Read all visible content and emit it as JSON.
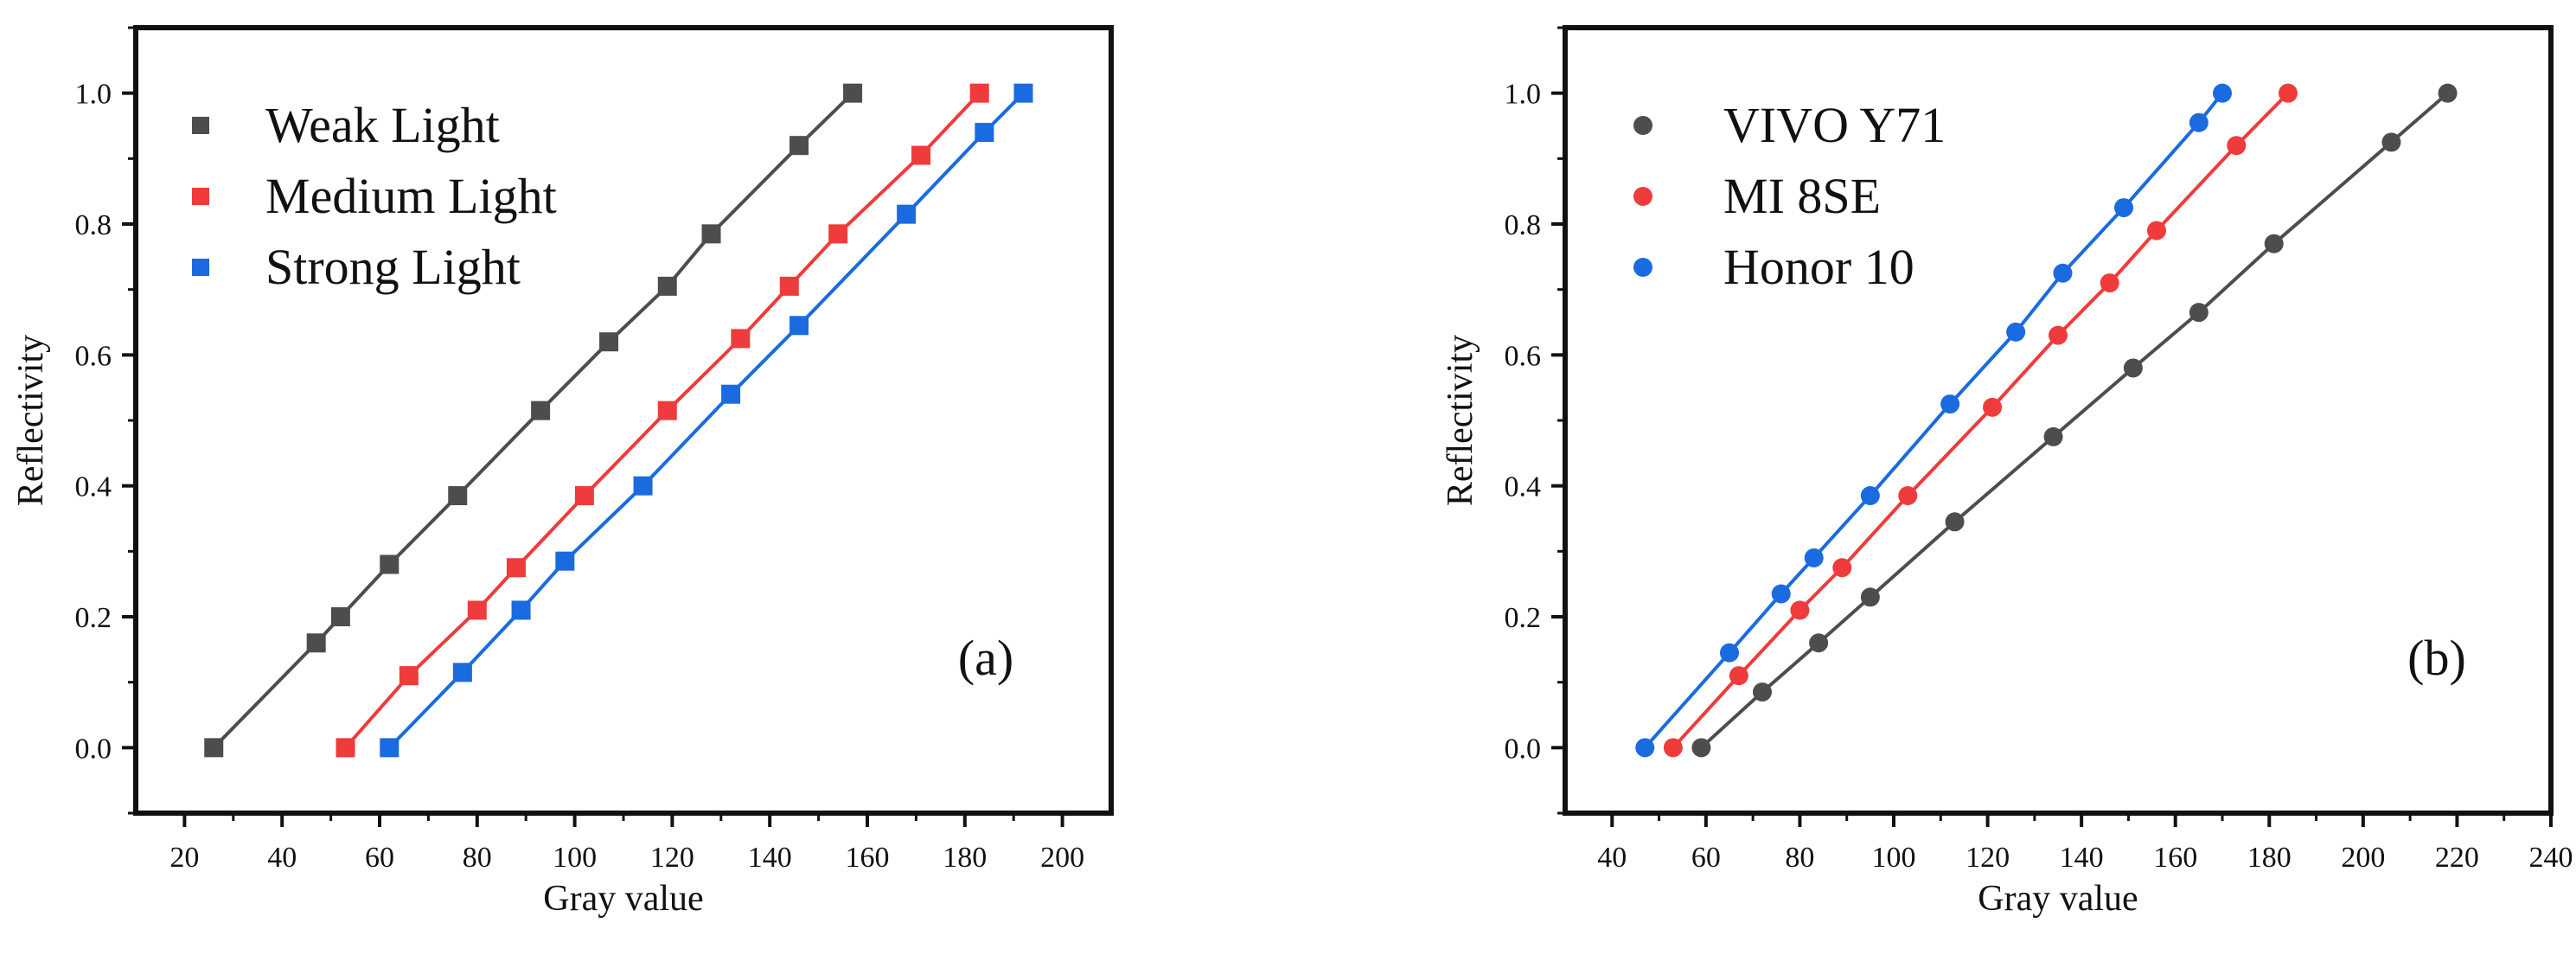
{
  "chart_data": [
    {
      "type": "line",
      "marker": "square",
      "title": "",
      "panel_label": "(a)",
      "xlabel": "Gray value",
      "ylabel": "Reflectivity",
      "xlim": [
        10,
        210
      ],
      "ylim": [
        -0.1,
        1.1
      ],
      "x_ticks": [
        20,
        40,
        60,
        80,
        100,
        120,
        140,
        160,
        180,
        200
      ],
      "y_ticks": [
        0.0,
        0.2,
        0.4,
        0.6,
        0.8,
        1.0
      ],
      "x_tick_labels": [
        "20",
        "40",
        "60",
        "80",
        "100",
        "120",
        "140",
        "160",
        "180",
        "200"
      ],
      "y_tick_labels": [
        "0.0",
        "0.2",
        "0.4",
        "0.6",
        "0.8",
        "1.0"
      ],
      "grid": false,
      "legend_position": "top-left",
      "series": [
        {
          "name": "Weak Light",
          "color": "#4d4d4d",
          "x": [
            26,
            47,
            52,
            62,
            76,
            93,
            107,
            119,
            128,
            146,
            157
          ],
          "y": [
            0.0,
            0.16,
            0.2,
            0.28,
            0.385,
            0.515,
            0.62,
            0.705,
            0.785,
            0.92,
            1.0
          ]
        },
        {
          "name": "Medium Light",
          "color": "#ef3b3b",
          "x": [
            53,
            66,
            80,
            88,
            102,
            119,
            134,
            144,
            154,
            171,
            183
          ],
          "y": [
            0.0,
            0.11,
            0.21,
            0.275,
            0.385,
            0.515,
            0.625,
            0.705,
            0.785,
            0.905,
            1.0
          ]
        },
        {
          "name": "Strong Light",
          "color": "#1a6be0",
          "x": [
            62,
            77,
            89,
            98,
            114,
            132,
            146,
            168,
            184,
            192
          ],
          "y": [
            0.0,
            0.115,
            0.21,
            0.285,
            0.4,
            0.54,
            0.645,
            0.815,
            0.94,
            1.0
          ]
        }
      ]
    },
    {
      "type": "line",
      "marker": "circle",
      "title": "",
      "panel_label": "(b)",
      "xlabel": "Gray value",
      "ylabel": "Reflectivity",
      "xlim": [
        30,
        240
      ],
      "ylim": [
        -0.1,
        1.1
      ],
      "x_ticks": [
        40,
        60,
        80,
        100,
        120,
        140,
        160,
        180,
        200,
        220,
        240
      ],
      "y_ticks": [
        0.0,
        0.2,
        0.4,
        0.6,
        0.8,
        1.0
      ],
      "x_tick_labels": [
        "40",
        "60",
        "80",
        "100",
        "120",
        "140",
        "160",
        "180",
        "200",
        "220",
        "240"
      ],
      "y_tick_labels": [
        "0.0",
        "0.2",
        "0.4",
        "0.6",
        "0.8",
        "1.0"
      ],
      "grid": false,
      "legend_position": "top-left",
      "series": [
        {
          "name": "VIVO Y71",
          "color": "#4d4d4d",
          "x": [
            59,
            72,
            84,
            95,
            113,
            134,
            151,
            165,
            181,
            206,
            218
          ],
          "y": [
            0.0,
            0.085,
            0.16,
            0.23,
            0.345,
            0.475,
            0.58,
            0.665,
            0.77,
            0.925,
            1.0
          ]
        },
        {
          "name": "MI 8SE",
          "color": "#ef3b3b",
          "x": [
            53,
            67,
            80,
            89,
            103,
            121,
            135,
            146,
            156,
            173,
            184
          ],
          "y": [
            0.0,
            0.11,
            0.21,
            0.275,
            0.385,
            0.52,
            0.63,
            0.71,
            0.79,
            0.92,
            1.0
          ]
        },
        {
          "name": "Honor 10",
          "color": "#1a6be0",
          "x": [
            47,
            65,
            76,
            83,
            95,
            112,
            126,
            136,
            149,
            165,
            170
          ],
          "y": [
            0.0,
            0.145,
            0.235,
            0.29,
            0.385,
            0.525,
            0.635,
            0.725,
            0.825,
            0.955,
            1.0
          ]
        }
      ]
    }
  ]
}
